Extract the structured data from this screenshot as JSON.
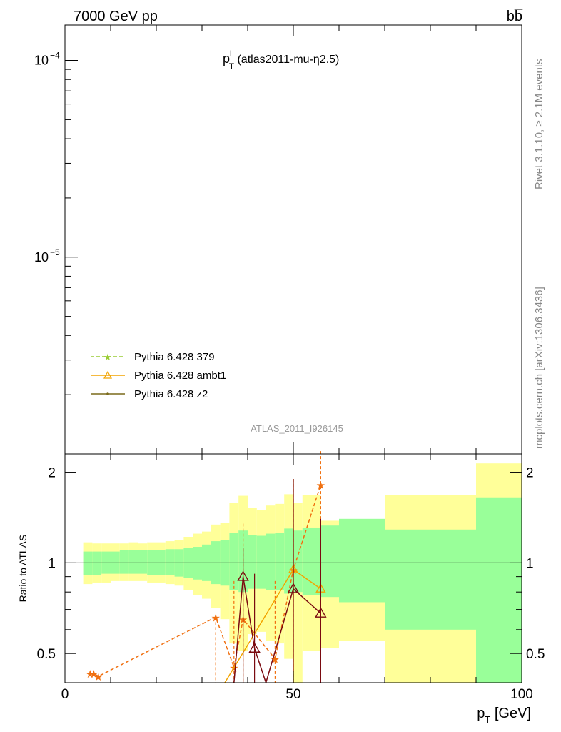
{
  "header": {
    "energy_label": "7000 GeV pp",
    "process_label": "bb̅"
  },
  "side_labels": {
    "rivet": "Rivet 3.1.10, ≥ 2.1M events",
    "source": "mcplots.cern.ch [arXiv:1306.3436]"
  },
  "chart_data": {
    "type": "line",
    "title_main": "p",
    "title_sup": "l",
    "title_sub": "T",
    "title_rest": " (atlas2011-mu-η2.5)",
    "watermark": "ATLAS_2011_I926145",
    "xlabel_main": "p",
    "xlabel_sub": "T",
    "xlabel_rest": " [GeV]",
    "ylabel_ratio": "Ratio to ATLAS",
    "xlim": [
      0,
      100
    ],
    "main_ylog": true,
    "main_yticks": [
      {
        "label": "10",
        "exp": "−4",
        "value": 0.0001
      },
      {
        "label": "10",
        "exp": "−5",
        "value": 1e-05
      }
    ],
    "ratio_ylim": [
      0.4,
      2.3
    ],
    "ratio_ylog": true,
    "ratio_yticks": [
      "0.5",
      "1",
      "2"
    ],
    "ratio_ytick_values": [
      0.5,
      1,
      2
    ],
    "xticks": [
      "0",
      "50",
      "100"
    ],
    "xtick_values": [
      0,
      50,
      100
    ],
    "colors": {
      "green_band": "#99ff99",
      "yellow_band": "#ffff99",
      "series_379": "#99cc33",
      "series_ambt1": "#f2a400",
      "series_z2": "#7a6a1a",
      "stars": "#f07010",
      "dark_red": "#7a0a10"
    },
    "bands": [
      {
        "x0": 4,
        "x1": 6,
        "g_lo": 0.91,
        "g_hi": 1.09,
        "y_lo": 0.85,
        "y_hi": 1.17
      },
      {
        "x0": 6,
        "x1": 8,
        "g_lo": 0.91,
        "g_hi": 1.09,
        "y_lo": 0.86,
        "y_hi": 1.16
      },
      {
        "x0": 8,
        "x1": 10,
        "g_lo": 0.92,
        "g_hi": 1.09,
        "y_lo": 0.86,
        "y_hi": 1.16
      },
      {
        "x0": 10,
        "x1": 12,
        "g_lo": 0.92,
        "g_hi": 1.09,
        "y_lo": 0.87,
        "y_hi": 1.16
      },
      {
        "x0": 12,
        "x1": 14,
        "g_lo": 0.92,
        "g_hi": 1.1,
        "y_lo": 0.87,
        "y_hi": 1.16
      },
      {
        "x0": 14,
        "x1": 16,
        "g_lo": 0.92,
        "g_hi": 1.1,
        "y_lo": 0.87,
        "y_hi": 1.17
      },
      {
        "x0": 16,
        "x1": 18,
        "g_lo": 0.92,
        "g_hi": 1.1,
        "y_lo": 0.87,
        "y_hi": 1.16
      },
      {
        "x0": 18,
        "x1": 20,
        "g_lo": 0.91,
        "g_hi": 1.1,
        "y_lo": 0.86,
        "y_hi": 1.17
      },
      {
        "x0": 20,
        "x1": 22,
        "g_lo": 0.91,
        "g_hi": 1.1,
        "y_lo": 0.86,
        "y_hi": 1.17
      },
      {
        "x0": 22,
        "x1": 24,
        "g_lo": 0.91,
        "g_hi": 1.11,
        "y_lo": 0.85,
        "y_hi": 1.18
      },
      {
        "x0": 24,
        "x1": 26,
        "g_lo": 0.9,
        "g_hi": 1.11,
        "y_lo": 0.84,
        "y_hi": 1.19
      },
      {
        "x0": 26,
        "x1": 28,
        "g_lo": 0.89,
        "g_hi": 1.12,
        "y_lo": 0.81,
        "y_hi": 1.22
      },
      {
        "x0": 28,
        "x1": 30,
        "g_lo": 0.88,
        "g_hi": 1.13,
        "y_lo": 0.78,
        "y_hi": 1.25
      },
      {
        "x0": 30,
        "x1": 32,
        "g_lo": 0.87,
        "g_hi": 1.15,
        "y_lo": 0.76,
        "y_hi": 1.27
      },
      {
        "x0": 32,
        "x1": 34,
        "g_lo": 0.85,
        "g_hi": 1.18,
        "y_lo": 0.71,
        "y_hi": 1.34
      },
      {
        "x0": 34,
        "x1": 36,
        "g_lo": 0.84,
        "g_hi": 1.19,
        "y_lo": 0.65,
        "y_hi": 1.36
      },
      {
        "x0": 36,
        "x1": 38,
        "g_lo": 0.81,
        "g_hi": 1.26,
        "y_lo": 0.54,
        "y_hi": 1.58
      },
      {
        "x0": 38,
        "x1": 40,
        "g_lo": 0.8,
        "g_hi": 1.28,
        "y_lo": 0.51,
        "y_hi": 1.67
      },
      {
        "x0": 40,
        "x1": 42,
        "g_lo": 0.82,
        "g_hi": 1.24,
        "y_lo": 0.58,
        "y_hi": 1.52
      },
      {
        "x0": 42,
        "x1": 44,
        "g_lo": 0.82,
        "g_hi": 1.23,
        "y_lo": 0.59,
        "y_hi": 1.5
      },
      {
        "x0": 44,
        "x1": 46,
        "g_lo": 0.81,
        "g_hi": 1.25,
        "y_lo": 0.55,
        "y_hi": 1.55
      },
      {
        "x0": 46,
        "x1": 48,
        "g_lo": 0.81,
        "g_hi": 1.26,
        "y_lo": 0.54,
        "y_hi": 1.57
      },
      {
        "x0": 48,
        "x1": 50,
        "g_lo": 0.79,
        "g_hi": 1.3,
        "y_lo": 0.48,
        "y_hi": 1.69
      },
      {
        "x0": 50,
        "x1": 52,
        "g_lo": 0.8,
        "g_hi": 1.28,
        "y_lo": 0.4,
        "y_hi": 1.58
      },
      {
        "x0": 52,
        "x1": 56,
        "g_lo": 0.78,
        "g_hi": 1.31,
        "y_lo": 0.51,
        "y_hi": 1.68
      },
      {
        "x0": 56,
        "x1": 60,
        "g_lo": 0.77,
        "g_hi": 1.33,
        "y_lo": 0.52,
        "y_hi": 1.38
      },
      {
        "x0": 60,
        "x1": 70,
        "g_lo": 0.74,
        "g_hi": 1.4,
        "y_lo": 0.55,
        "y_hi": 1.39
      },
      {
        "x0": 70,
        "x1": 90,
        "g_lo": 0.6,
        "g_hi": 1.29,
        "y_lo": 0.4,
        "y_hi": 1.68
      },
      {
        "x0": 90,
        "x1": 100,
        "g_lo": 0.4,
        "g_hi": 1.65,
        "y_lo": 0.4,
        "y_hi": 2.14
      }
    ],
    "series": [
      {
        "name": "Pythia 6.428 379",
        "style": "dashed-star",
        "x": [
          5.5,
          6.3,
          7.3,
          33,
          37,
          39,
          46,
          50,
          56
        ],
        "y": [
          0.43,
          0.43,
          0.42,
          0.66,
          0.45,
          0.65,
          0.48,
          0.95,
          1.82
        ],
        "err_hi": [
          0.43,
          0.43,
          0.42,
          0.66,
          0.87,
          1.35,
          0.87,
          1.9,
          2.35
        ],
        "err_lo": [
          0.43,
          0.43,
          0.42,
          0.4,
          0.4,
          0.4,
          0.4,
          0.4,
          0.4
        ]
      },
      {
        "name": "Pythia 6.428 ambt1",
        "style": "solid-triangle",
        "x": [
          35,
          50,
          56
        ],
        "y": [
          0.4,
          0.95,
          0.82
        ],
        "err_hi": [
          0.4,
          1.9,
          1.35
        ],
        "err_lo": [
          0.4,
          0.4,
          0.4
        ]
      },
      {
        "name": "Pythia 6.428 z2",
        "style": "solid-dot",
        "x": [
          37,
          39,
          41.5,
          44,
          50,
          56
        ],
        "y": [
          0.4,
          0.9,
          0.52,
          0.4,
          0.82,
          0.68
        ],
        "err_hi": [
          0.4,
          1.12,
          0.92,
          0.4,
          1.9,
          1.4
        ],
        "err_lo": [
          0.4,
          0.4,
          0.4,
          0.4,
          0.4,
          0.4
        ]
      }
    ]
  }
}
